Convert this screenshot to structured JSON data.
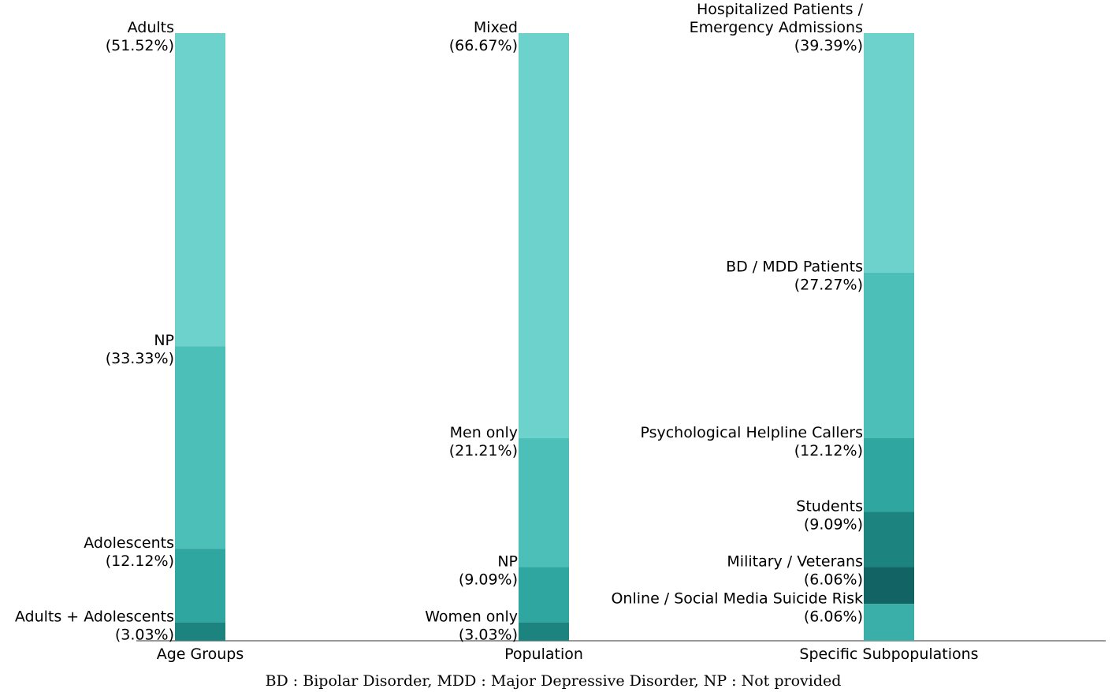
{
  "chart_data": {
    "type": "bar",
    "stacked": true,
    "ylim": [
      0,
      100
    ],
    "grid": false,
    "caption": "BD : Bipolar Disorder, MDD : Major Depressive Disorder, NP : Not provided",
    "bars": [
      {
        "category": "Age Groups",
        "segments": [
          {
            "name": "Adults",
            "value": 51.52,
            "label": "(51.52%)",
            "color": "#6dd1cc"
          },
          {
            "name": "NP",
            "value": 33.33,
            "label": "(33.33%)",
            "color": "#4bbfb8"
          },
          {
            "name": "Adolescents",
            "value": 12.12,
            "label": "(12.12%)",
            "color": "#2fa6a0"
          },
          {
            "name": "Adults + Adolescents",
            "value": 3.03,
            "label": "(3.03%)",
            "color": "#1d837f"
          }
        ]
      },
      {
        "category": "Population",
        "segments": [
          {
            "name": "Mixed",
            "value": 66.67,
            "label": "(66.67%)",
            "color": "#6dd1cc"
          },
          {
            "name": "Men only",
            "value": 21.21,
            "label": "(21.21%)",
            "color": "#4bbfb8"
          },
          {
            "name": "NP",
            "value": 9.09,
            "label": "(9.09%)",
            "color": "#2fa6a0"
          },
          {
            "name": "Women only",
            "value": 3.03,
            "label": "(3.03%)",
            "color": "#1d837f"
          }
        ]
      },
      {
        "category": "Specific Subpopulations",
        "segments": [
          {
            "name": "Hospitalized Patients /\nEmergency Admissions",
            "value": 39.39,
            "label": "(39.39%)",
            "color": "#6dd1cc"
          },
          {
            "name": "BD / MDD Patients",
            "value": 27.27,
            "label": "(27.27%)",
            "color": "#4bbfb8"
          },
          {
            "name": "Psychological Helpline Callers",
            "value": 12.12,
            "label": "(12.12%)",
            "color": "#2fa6a0"
          },
          {
            "name": "Students",
            "value": 9.09,
            "label": "(9.09%)",
            "color": "#1d837f"
          },
          {
            "name": "Military / Veterans",
            "value": 6.06,
            "label": "(6.06%)",
            "color": "#126464"
          },
          {
            "name": "Online / Social Media Suicide Risk",
            "value": 6.06,
            "label": "(6.06%)",
            "color": "#3aaea8"
          }
        ]
      }
    ]
  }
}
